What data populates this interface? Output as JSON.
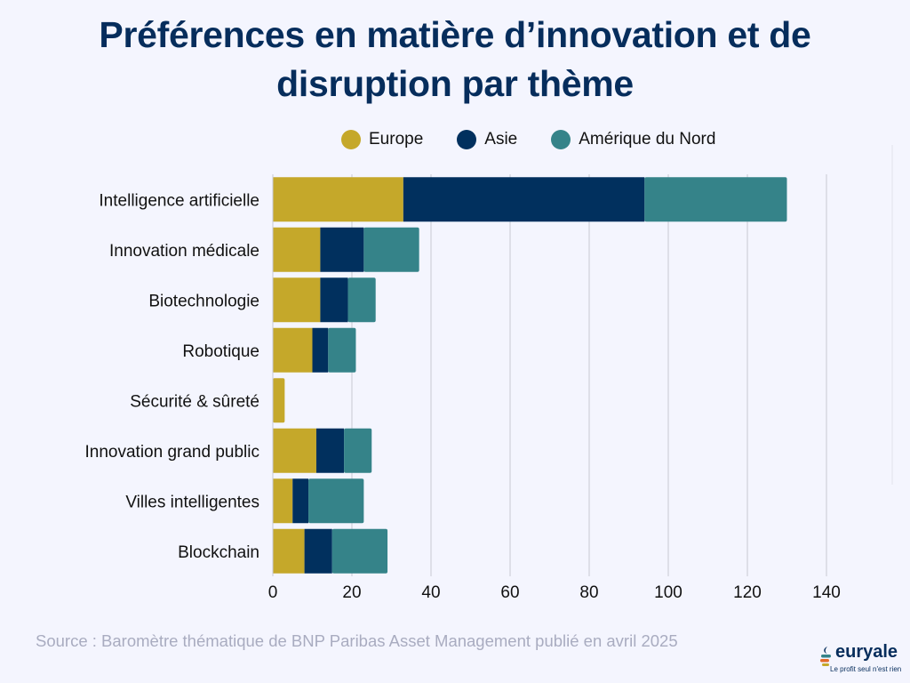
{
  "title_lines": [
    "Préférences en matière d’innovation et de",
    "disruption par thème"
  ],
  "source": "Source : Baromètre thématique de BNP Paribas Asset Management publié en avril 2025",
  "logo": {
    "name": "euryale",
    "tagline": "Le profit seul n'est rien"
  },
  "chart_data": {
    "type": "bar",
    "orientation": "horizontal",
    "stacked": true,
    "title": "Préférences en matière d’innovation et de disruption par thème",
    "xlabel": "",
    "ylabel": "",
    "xlim": [
      0,
      140
    ],
    "xticks": [
      0,
      20,
      40,
      60,
      80,
      100,
      120,
      140
    ],
    "grid": true,
    "legend_position": "top",
    "categories": [
      "Intelligence artificielle",
      "Innovation médicale",
      "Biotechnologie",
      "Robotique",
      "Sécurité & sûreté",
      "Innovation grand public",
      "Villes intelligentes",
      "Blockchain"
    ],
    "series": [
      {
        "name": "Europe",
        "color": "#c5a82a",
        "values": [
          33,
          12,
          12,
          10,
          3,
          11,
          5,
          8
        ]
      },
      {
        "name": "Asie",
        "color": "#01305e",
        "values": [
          61,
          11,
          7,
          4,
          0,
          7,
          4,
          7
        ]
      },
      {
        "name": "Amérique du Nord",
        "color": "#358389",
        "values": [
          36,
          14,
          7,
          7,
          0,
          7,
          14,
          14
        ]
      }
    ]
  }
}
